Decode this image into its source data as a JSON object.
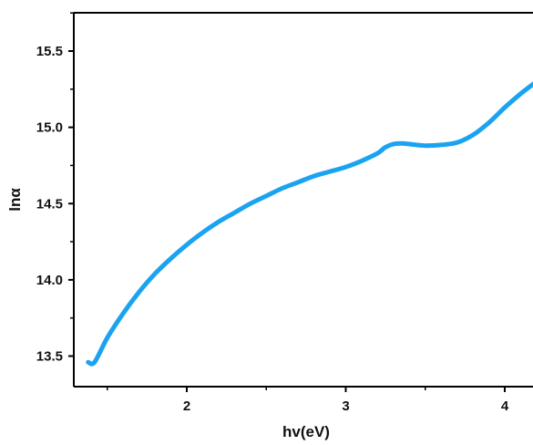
{
  "chart_data": {
    "type": "line",
    "xlabel": "hv(eV)",
    "ylabel": "lnα",
    "xlim": [
      1.3,
      4.2
    ],
    "ylim": [
      13.3,
      15.75
    ],
    "xticks": [
      2,
      3,
      4
    ],
    "xtick_labels": [
      "2",
      "3",
      "4"
    ],
    "yticks": [
      13.5,
      14.0,
      14.5,
      15.0,
      15.5
    ],
    "ytick_labels": [
      "13.5",
      "14.0",
      "14.5",
      "15.0",
      "15.5"
    ],
    "grid": false,
    "series": [
      {
        "color": "#1AA3F0",
        "x": [
          1.38,
          1.42,
          1.5,
          1.6,
          1.7,
          1.8,
          1.9,
          2.0,
          2.1,
          2.2,
          2.3,
          2.4,
          2.5,
          2.6,
          2.7,
          2.8,
          2.9,
          3.0,
          3.1,
          3.2,
          3.25,
          3.3,
          3.35,
          3.4,
          3.5,
          3.6,
          3.7,
          3.8,
          3.9,
          4.0,
          4.1,
          4.2
        ],
        "y": [
          13.46,
          13.46,
          13.62,
          13.78,
          13.92,
          14.04,
          14.14,
          14.23,
          14.31,
          14.38,
          14.44,
          14.5,
          14.55,
          14.6,
          14.64,
          14.68,
          14.71,
          14.74,
          14.78,
          14.83,
          14.87,
          14.89,
          14.895,
          14.89,
          14.88,
          14.885,
          14.9,
          14.95,
          15.03,
          15.13,
          15.22,
          15.3
        ]
      }
    ]
  }
}
